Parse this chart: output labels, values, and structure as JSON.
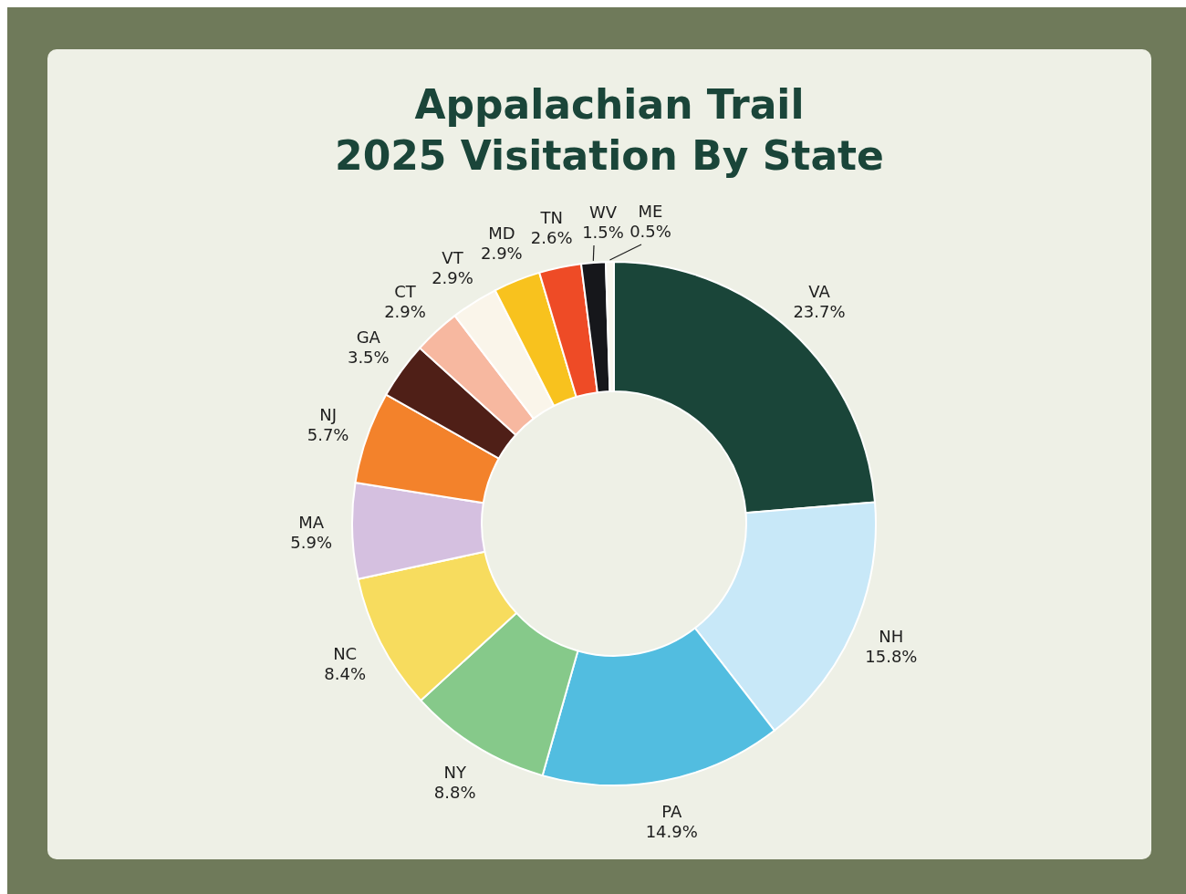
{
  "chart_data": {
    "type": "donut",
    "title": "Appalachian Trail\n2025 Visitation By State",
    "categories": [
      "VA",
      "NH",
      "PA",
      "NY",
      "NC",
      "MA",
      "NJ",
      "GA",
      "CT",
      "VT",
      "MD",
      "TN",
      "WV",
      "ME"
    ],
    "values": [
      23.7,
      15.8,
      14.9,
      8.8,
      8.4,
      5.9,
      5.7,
      3.5,
      2.9,
      2.9,
      2.9,
      2.6,
      1.5,
      0.5
    ],
    "value_labels": [
      "23.7%",
      "15.8%",
      "14.9%",
      "8.8%",
      "8.4%",
      "5.9%",
      "5.7%",
      "3.5%",
      "2.9%",
      "2.9%",
      "2.9%",
      "2.6%",
      "1.5%",
      "0.5%"
    ],
    "colors": [
      "#1a4539",
      "#c8e8f8",
      "#52bde0",
      "#86c98a",
      "#f7dc5e",
      "#d5c0e0",
      "#f3822b",
      "#4f1f17",
      "#f7b8a0",
      "#faf5ea",
      "#f8c21e",
      "#ee4b26",
      "#16171b",
      "#f8f6ee"
    ]
  }
}
